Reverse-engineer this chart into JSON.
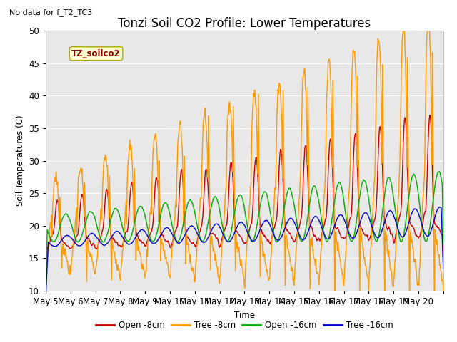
{
  "title": "Tonzi Soil CO2 Profile: Lower Temperatures",
  "subtitle": "No data for f_T2_TC3",
  "ylabel": "Soil Temperatures (C)",
  "xlabel": "Time",
  "ylim": [
    10,
    50
  ],
  "yticks": [
    10,
    15,
    20,
    25,
    30,
    35,
    40,
    45,
    50
  ],
  "xtick_labels": [
    "May 5",
    "May 6",
    "May 7",
    "May 8",
    "May 9",
    "May 10",
    "May 11",
    "May 12",
    "May 13",
    "May 14",
    "May 15",
    "May 16",
    "May 17",
    "May 18",
    "May 19",
    "May 20"
  ],
  "legend_label": "TZ_soilco2",
  "series_labels": [
    "Open -8cm",
    "Tree -8cm",
    "Open -16cm",
    "Tree -16cm"
  ],
  "series_colors": [
    "#cc0000",
    "#ff9900",
    "#00aa00",
    "#0000cc"
  ],
  "plot_bg_color": "#e8e8e8",
  "title_fontsize": 12,
  "axis_fontsize": 9,
  "n_days": 16,
  "pts_per_day": 48
}
